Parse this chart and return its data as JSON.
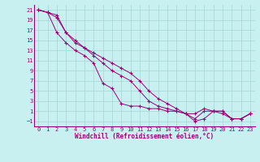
{
  "xlabel": "Windchill (Refroidissement éolien,°C)",
  "bg_color": "#c8f0f0",
  "line_color": "#9b0075",
  "grid_color": "#a8d4d4",
  "xlim": [
    -0.5,
    23.5
  ],
  "ylim": [
    -2.0,
    22.0
  ],
  "xticks": [
    0,
    1,
    2,
    3,
    4,
    5,
    6,
    7,
    8,
    9,
    10,
    11,
    12,
    13,
    14,
    15,
    16,
    17,
    18,
    19,
    20,
    21,
    22,
    23
  ],
  "yticks": [
    -1,
    1,
    3,
    5,
    7,
    9,
    11,
    13,
    15,
    17,
    19,
    21
  ],
  "series1_x": [
    0,
    1,
    2,
    3,
    4,
    5,
    6,
    7,
    8,
    9,
    10,
    11,
    12,
    13,
    14,
    15,
    16,
    17,
    18,
    19,
    20,
    21,
    22,
    23
  ],
  "series1_y": [
    21,
    20.5,
    16.5,
    14.5,
    13,
    12,
    10.5,
    6.5,
    5.5,
    2.5,
    2,
    2,
    1.5,
    1.5,
    1,
    1,
    0.5,
    -0.5,
    1,
    1,
    1,
    -0.5,
    -0.5,
    0.5
  ],
  "series2_x": [
    0,
    1,
    2,
    3,
    4,
    5,
    6,
    7,
    8,
    9,
    10,
    11,
    12,
    13,
    14,
    15,
    16,
    17,
    18,
    19,
    20,
    21,
    22,
    23
  ],
  "series2_y": [
    21,
    20.5,
    20,
    16.5,
    15,
    13.5,
    12,
    10.5,
    9,
    8,
    7,
    5,
    3,
    2,
    1.5,
    1,
    0.5,
    0.5,
    1.5,
    1,
    0.5,
    -0.5,
    -0.5,
    0.5
  ],
  "series3_x": [
    0,
    1,
    2,
    3,
    4,
    5,
    6,
    7,
    8,
    9,
    10,
    11,
    12,
    13,
    14,
    15,
    16,
    17,
    18,
    19,
    20,
    21,
    22,
    23
  ],
  "series3_y": [
    21,
    20.5,
    19.5,
    16.5,
    14.5,
    13.5,
    12.5,
    11.5,
    10.5,
    9.5,
    8.5,
    7,
    5,
    3.5,
    2.5,
    1.5,
    0.5,
    -1.0,
    -0.5,
    1,
    1,
    -0.5,
    -0.5,
    0.5
  ],
  "tick_fontsize": 5,
  "xlabel_fontsize": 5.5,
  "xlabel_fontweight": "bold"
}
